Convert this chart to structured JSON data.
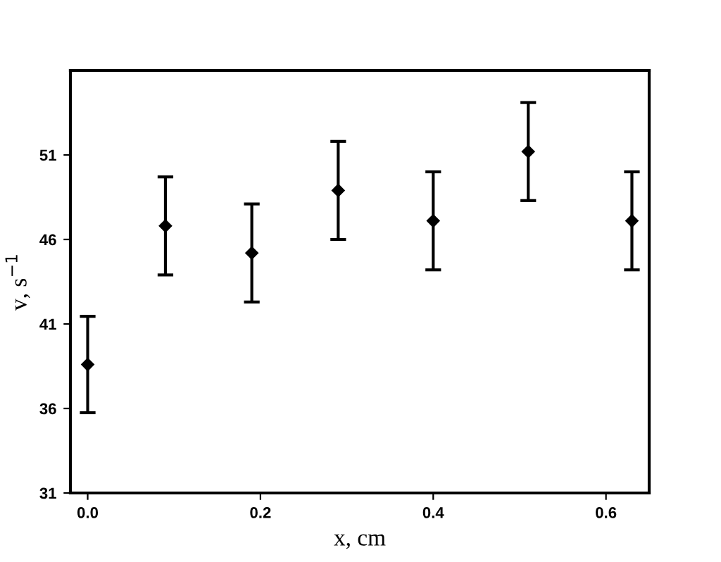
{
  "chart_data": {
    "type": "scatter",
    "xlabel": "x, cm",
    "ylabel": "v, s$^{−1}$",
    "x": [
      0.0,
      0.09,
      0.19,
      0.29,
      0.4,
      0.51,
      0.63
    ],
    "series": [
      {
        "color": "#000000",
        "values": [
          38.6,
          46.8,
          45.2,
          48.9,
          47.1,
          51.2,
          47.1
        ],
        "errors": [
          2.85,
          2.9,
          2.9,
          2.9,
          2.9,
          2.9,
          2.9
        ]
      }
    ],
    "marker": "diamond",
    "xlim": [
      -0.02,
      0.65
    ],
    "xticks": [
      {
        "value": 0,
        "label": "0.0"
      },
      0.2,
      0.4,
      0.6
    ],
    "ylim": [
      31,
      56
    ],
    "yticks": [
      31,
      36,
      41,
      46,
      51
    ],
    "grid": false,
    "legend": false
  }
}
